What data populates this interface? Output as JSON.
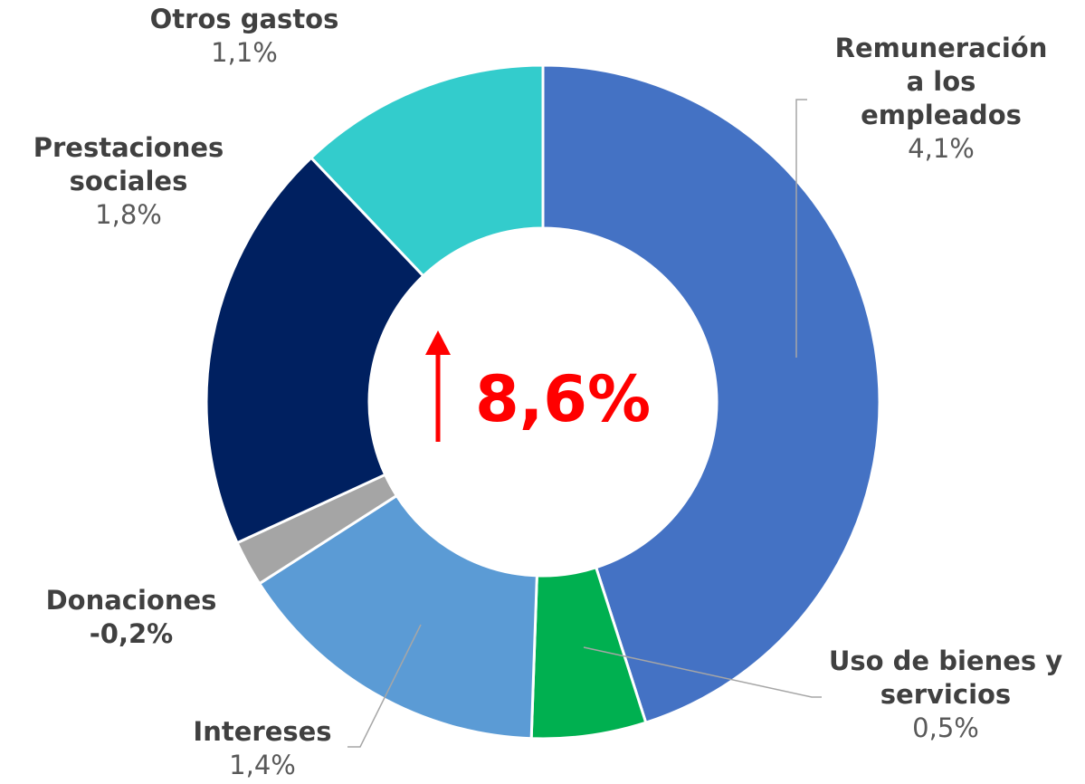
{
  "chart_data": {
    "type": "donut",
    "categories": [
      "Remuneración a los empleados",
      "Uso de bienes y servicios",
      "Intereses",
      "Donaciones",
      "Prestaciones sociales",
      "Otros gastos"
    ],
    "values": [
      4.1,
      0.5,
      1.4,
      -0.2,
      1.8,
      1.1
    ],
    "value_labels": [
      "4,1%",
      "0,5%",
      "1,4%",
      "-0,2%",
      "1,8%",
      "1,1%"
    ],
    "colors": [
      "#4472c4",
      "#00b050",
      "#5b9bd5",
      "#a5a5a5",
      "#002060",
      "#33cccc"
    ],
    "center_label": "8,6%"
  }
}
